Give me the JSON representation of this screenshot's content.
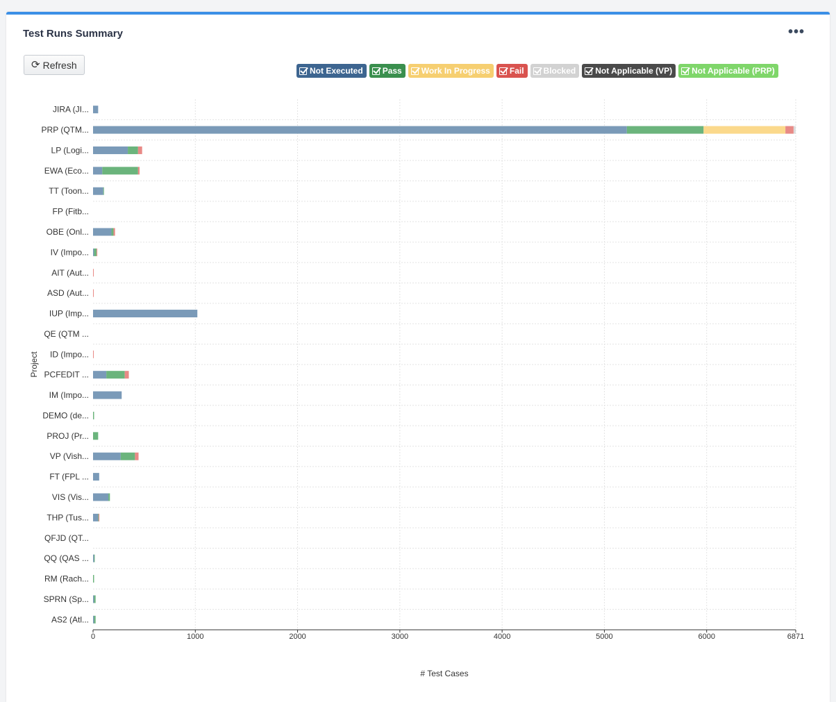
{
  "header": {
    "title": "Test Runs Summary",
    "more_label": "•••"
  },
  "toolbar": {
    "refresh_label": "Refresh"
  },
  "chart_data": {
    "type": "bar",
    "orientation": "horizontal",
    "stacked": true,
    "xlabel": "# Test Cases",
    "ylabel": "Project",
    "xlim": [
      0,
      6871
    ],
    "xticks": [
      0,
      1000,
      2000,
      3000,
      4000,
      5000,
      6000,
      6871
    ],
    "grid": true,
    "legend_position": "top-right",
    "categories": [
      "JIRA (JI...",
      "PRP (QTM...",
      "LP (Logi...",
      "EWA (Eco...",
      "TT (Toon...",
      "FP (Fitb...",
      "OBE (Onl...",
      "IV (Impo...",
      "AIT (Aut...",
      "ASD (Aut...",
      "IUP (Imp...",
      "QE (QTM ...",
      "ID (Impo...",
      "PCFEDIT ...",
      "IM (Impo...",
      "DEMO (de...",
      "PROJ (Pr...",
      "VP (Vish...",
      "FT (FPL ...",
      "VIS (Vis...",
      "THP (Tus...",
      "QFJD (QT...",
      "QQ (QAS ...",
      "RM (Rach...",
      "SPRN (Sp...",
      "AS2 (Atl..."
    ],
    "series": [
      {
        "name": "Not Executed",
        "color": "#7a9ab8",
        "legend_color": "#3d6590",
        "values": [
          50,
          5220,
          340,
          90,
          100,
          0,
          180,
          10,
          0,
          0,
          1020,
          0,
          0,
          130,
          280,
          0,
          0,
          270,
          60,
          150,
          50,
          0,
          10,
          0,
          10,
          10
        ]
      },
      {
        "name": "Pass",
        "color": "#6bb47c",
        "legend_color": "#3a8f4e",
        "values": [
          0,
          750,
          100,
          350,
          5,
          0,
          20,
          25,
          0,
          0,
          0,
          0,
          0,
          180,
          0,
          10,
          50,
          140,
          0,
          15,
          5,
          0,
          5,
          10,
          15,
          15
        ]
      },
      {
        "name": "Work In Progress",
        "color": "#fbd98c",
        "legend_color": "#f6cf71",
        "values": [
          0,
          800,
          0,
          0,
          0,
          0,
          0,
          0,
          0,
          0,
          0,
          0,
          0,
          0,
          0,
          0,
          0,
          0,
          0,
          0,
          0,
          0,
          0,
          0,
          0,
          0
        ]
      },
      {
        "name": "Fail",
        "color": "#e88a86",
        "legend_color": "#d9534f",
        "values": [
          0,
          80,
          40,
          15,
          0,
          0,
          15,
          5,
          5,
          5,
          0,
          0,
          5,
          40,
          0,
          0,
          0,
          35,
          0,
          0,
          5,
          0,
          0,
          0,
          0,
          0
        ]
      },
      {
        "name": "Blocked",
        "color": "#dcdcdc",
        "legend_color": "#d2d2d2",
        "values": [
          0,
          20,
          0,
          0,
          0,
          0,
          0,
          0,
          0,
          0,
          0,
          0,
          0,
          0,
          0,
          0,
          0,
          0,
          0,
          0,
          0,
          0,
          0,
          0,
          0,
          0
        ]
      },
      {
        "name": "Not Applicable (VP)",
        "color": "#555555",
        "legend_color": "#4a4a4a",
        "values": [
          0,
          0,
          0,
          0,
          0,
          0,
          0,
          0,
          0,
          0,
          0,
          0,
          0,
          0,
          0,
          0,
          0,
          0,
          0,
          0,
          0,
          0,
          0,
          0,
          0,
          0
        ]
      },
      {
        "name": "Not Applicable (PRP)",
        "color": "#8fdf79",
        "legend_color": "#7fd66a",
        "values": [
          0,
          0,
          0,
          0,
          0,
          0,
          0,
          0,
          0,
          0,
          0,
          0,
          0,
          0,
          0,
          0,
          0,
          0,
          0,
          0,
          0,
          0,
          0,
          0,
          0,
          0
        ]
      }
    ]
  }
}
